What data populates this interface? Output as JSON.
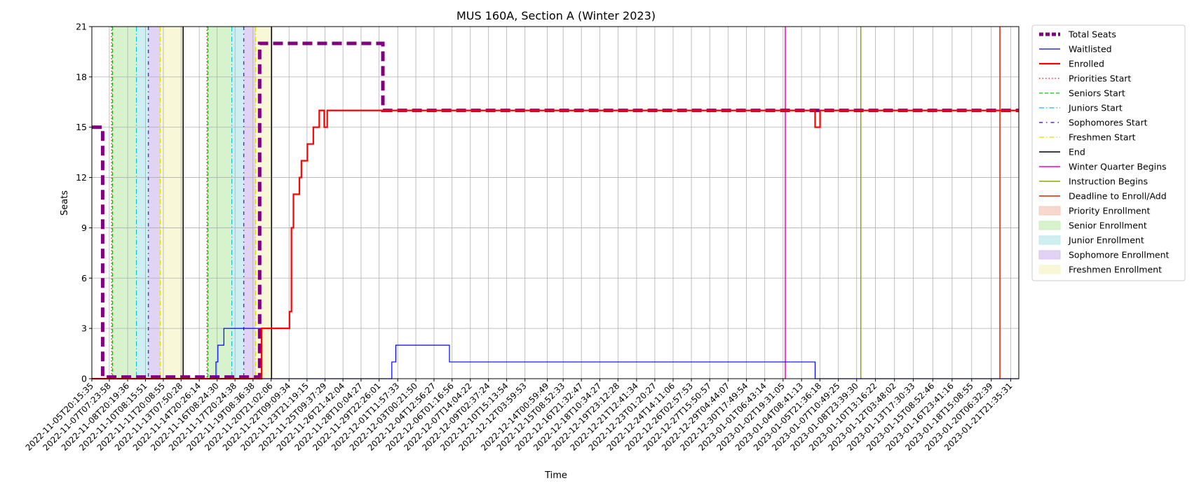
{
  "chart_data": {
    "type": "line",
    "title": "MUS 160A, Section A (Winter 2023)",
    "xlabel": "Time",
    "ylabel": "Seats",
    "ylim": [
      0,
      21
    ],
    "yticks": [
      0,
      3,
      6,
      9,
      12,
      15,
      18,
      21
    ],
    "xlim": [
      "2022-11-05T20:15:35",
      "2023-01-22T14:00:00"
    ],
    "grid": true,
    "legend_position": "outside-right",
    "xtick_labels": [
      "2022-11-05T20:15:35",
      "2022-11-07T07:23:58",
      "2022-11-08T20:19:36",
      "2022-11-10T08:15:51",
      "2022-11-11T20:08:55",
      "2022-11-13T07:50:28",
      "2022-11-14T20:26:14",
      "2022-11-16T08:24:30",
      "2022-11-17T20:24:38",
      "2022-11-19T08:36:38",
      "2022-11-20T21:02:06",
      "2022-11-22T09:09:34",
      "2022-11-23T21:19:15",
      "2022-11-25T09:37:29",
      "2022-11-26T21:42:04",
      "2022-11-28T10:04:27",
      "2022-11-29T22:26:01",
      "2022-12-01T11:57:33",
      "2022-12-03T00:21:50",
      "2022-12-04T12:56:27",
      "2022-12-06T01:16:56",
      "2022-12-07T14:04:22",
      "2022-12-09T02:37:24",
      "2022-12-10T15:13:54",
      "2022-12-12T03:59:53",
      "2022-12-14T00:59:49",
      "2022-12-15T08:52:33",
      "2022-12-16T21:32:47",
      "2022-12-18T10:34:27",
      "2022-12-19T23:12:28",
      "2022-12-21T12:41:34",
      "2022-12-23T01:20:27",
      "2022-12-24T14:11:06",
      "2022-12-26T02:57:53",
      "2022-12-27T15:50:57",
      "2022-12-29T04:44:07",
      "2022-12-30T17:49:54",
      "2023-01-01T06:43:14",
      "2023-01-02T19:31:05",
      "2023-01-04T08:41:13",
      "2023-01-05T21:36:18",
      "2023-01-07T10:49:25",
      "2023-01-08T23:39:30",
      "2023-01-10T13:16:22",
      "2023-01-12T03:48:02",
      "2023-01-13T17:30:33",
      "2023-01-15T08:52:46",
      "2023-01-16T23:41:16",
      "2023-01-18T15:08:55",
      "2023-01-20T06:32:39",
      "2023-01-21T21:35:31"
    ],
    "shaded_regions": [
      {
        "name": "Priority Enrollment",
        "color": "#f4cbbd",
        "spans": [
          [
            "2022-11-07T12:00:00",
            "2022-11-07T14:00:00"
          ],
          [
            "2022-11-15T12:00:00",
            "2022-11-15T14:00:00"
          ]
        ]
      },
      {
        "name": "Senior Enrollment",
        "color": "#c8efbc",
        "spans": [
          [
            "2022-11-07T14:00:00",
            "2022-11-09T14:00:00"
          ],
          [
            "2022-11-15T14:00:00",
            "2022-11-17T14:00:00"
          ]
        ]
      },
      {
        "name": "Junior Enrollment",
        "color": "#bde8ee",
        "spans": [
          [
            "2022-11-09T14:00:00",
            "2022-11-10T14:00:00"
          ],
          [
            "2022-11-17T14:00:00",
            "2022-11-18T14:00:00"
          ]
        ]
      },
      {
        "name": "Sophomore Enrollment",
        "color": "#d7c4f0",
        "spans": [
          [
            "2022-11-10T14:00:00",
            "2022-11-11T14:00:00"
          ],
          [
            "2022-11-18T14:00:00",
            "2022-11-19T14:00:00"
          ]
        ]
      },
      {
        "name": "Freshmen Enrollment",
        "color": "#f6f6cc",
        "spans": [
          [
            "2022-11-11T14:00:00",
            "2022-11-13T12:00:00"
          ],
          [
            "2022-11-19T14:00:00",
            "2022-11-20T22:00:00"
          ]
        ]
      }
    ],
    "vlines": [
      {
        "name": "Priorities Start",
        "color": "#ff0000",
        "dash": "1.5,3",
        "width": 1.2,
        "x": [
          "2022-11-07T12:00:00",
          "2022-11-15T12:00:00"
        ]
      },
      {
        "name": "Seniors Start",
        "color": "#22bb22",
        "dash": "5,3",
        "width": 1.2,
        "x": [
          "2022-11-07T14:00:00",
          "2022-11-15T14:00:00"
        ]
      },
      {
        "name": "Juniors Start",
        "color": "#17becf",
        "dash": "7,3,1.5,3",
        "width": 1.2,
        "x": [
          "2022-11-09T14:00:00",
          "2022-11-17T14:00:00"
        ]
      },
      {
        "name": "Sophomores Start",
        "color": "#5522dd",
        "dash": "5,5,1.5,5",
        "width": 1.4,
        "x": [
          "2022-11-10T14:00:00",
          "2022-11-18T14:00:00"
        ]
      },
      {
        "name": "Freshmen Start",
        "color": "#dddd00",
        "dash": "7,3,1.5,3",
        "width": 1.2,
        "x": [
          "2022-11-11T14:00:00",
          "2022-11-19T14:00:00"
        ]
      },
      {
        "name": "End",
        "color": "#000000",
        "dash": "",
        "width": 1.5,
        "x": [
          "2022-11-13T12:00:00",
          "2022-11-20T22:00:00"
        ]
      },
      {
        "name": "Winter Quarter Begins",
        "color": "#ff00aa",
        "dash": "",
        "width": 1.5,
        "x": [
          "2023-01-03T00:00:00"
        ]
      },
      {
        "name": "Instruction Begins",
        "color": "#88aa00",
        "dash": "",
        "width": 1.5,
        "x": [
          "2023-01-09T08:00:00"
        ]
      },
      {
        "name": "Deadline to Enroll/Add",
        "color": "#dd2200",
        "dash": "",
        "width": 1.5,
        "x": [
          "2023-01-20T23:59:00"
        ]
      }
    ],
    "series": [
      {
        "name": "Total Seats",
        "color": "#800080",
        "width": 5,
        "dash": "14,7",
        "points": [
          [
            "2022-11-05T20:15:35",
            15
          ],
          [
            "2022-11-06T18:00:00",
            15
          ],
          [
            "2022-11-06T18:00:00",
            0.1
          ],
          [
            "2022-11-19T22:00:00",
            0.1
          ],
          [
            "2022-11-19T22:00:00",
            20
          ],
          [
            "2022-11-30T06:00:00",
            20
          ],
          [
            "2022-11-30T06:00:00",
            16
          ],
          [
            "2023-01-22T14:00:00",
            16
          ]
        ]
      },
      {
        "name": "Waitlisted",
        "color": "#0000ff",
        "width": 1.2,
        "dash": "",
        "points": [
          [
            "2022-11-05T20:15:35",
            0
          ],
          [
            "2022-11-16T06:00:00",
            0
          ],
          [
            "2022-11-16T06:00:00",
            1
          ],
          [
            "2022-11-16T10:00:00",
            1
          ],
          [
            "2022-11-16T10:00:00",
            2
          ],
          [
            "2022-11-16T22:00:00",
            2
          ],
          [
            "2022-11-16T22:00:00",
            3
          ],
          [
            "2022-11-20T02:00:00",
            3
          ],
          [
            "2022-11-20T02:00:00",
            0
          ],
          [
            "2022-12-01T00:00:00",
            0
          ],
          [
            "2022-12-01T00:00:00",
            1
          ],
          [
            "2022-12-01T08:00:00",
            1
          ],
          [
            "2022-12-01T08:00:00",
            2
          ],
          [
            "2022-12-05T20:00:00",
            2
          ],
          [
            "2022-12-05T20:00:00",
            1
          ],
          [
            "2023-01-05T12:00:00",
            1
          ],
          [
            "2023-01-05T12:00:00",
            0
          ],
          [
            "2023-01-22T14:00:00",
            0
          ]
        ]
      },
      {
        "name": "Enrolled",
        "color": "#ff0000",
        "width": 2.2,
        "dash": "",
        "points": [
          [
            "2022-11-05T20:15:35",
            0
          ],
          [
            "2022-11-20T02:00:00",
            0
          ],
          [
            "2022-11-20T02:00:00",
            3
          ],
          [
            "2022-11-22T10:00:00",
            3
          ],
          [
            "2022-11-22T10:00:00",
            4
          ],
          [
            "2022-11-22T14:00:00",
            4
          ],
          [
            "2022-11-22T14:00:00",
            9
          ],
          [
            "2022-11-22T18:00:00",
            9
          ],
          [
            "2022-11-22T18:00:00",
            11
          ],
          [
            "2022-11-23T06:00:00",
            11
          ],
          [
            "2022-11-23T06:00:00",
            12
          ],
          [
            "2022-11-23T10:00:00",
            12
          ],
          [
            "2022-11-23T10:00:00",
            13
          ],
          [
            "2022-11-23T22:00:00",
            13
          ],
          [
            "2022-11-23T22:00:00",
            14
          ],
          [
            "2022-11-24T10:00:00",
            14
          ],
          [
            "2022-11-24T10:00:00",
            15
          ],
          [
            "2022-11-24T22:00:00",
            15
          ],
          [
            "2022-11-24T22:00:00",
            16
          ],
          [
            "2022-11-25T08:00:00",
            16
          ],
          [
            "2022-11-25T08:00:00",
            15
          ],
          [
            "2022-11-25T14:00:00",
            15
          ],
          [
            "2022-11-25T14:00:00",
            16
          ],
          [
            "2023-01-05T12:00:00",
            16
          ],
          [
            "2023-01-05T12:00:00",
            15
          ],
          [
            "2023-01-05T22:00:00",
            15
          ],
          [
            "2023-01-05T22:00:00",
            16
          ],
          [
            "2023-01-22T14:00:00",
            16
          ]
        ]
      }
    ],
    "legend": [
      {
        "label": "Total Seats",
        "kind": "line",
        "color": "#800080",
        "width": 5,
        "dash": "6,3"
      },
      {
        "label": "Waitlisted",
        "kind": "line",
        "color": "#0000ff",
        "width": 1.2,
        "dash": ""
      },
      {
        "label": "Enrolled",
        "kind": "line",
        "color": "#ff0000",
        "width": 2.2,
        "dash": ""
      },
      {
        "label": "Priorities Start",
        "kind": "line",
        "color": "#ff0000",
        "width": 1.2,
        "dash": "1.5,3"
      },
      {
        "label": "Seniors Start",
        "kind": "line",
        "color": "#22bb22",
        "width": 1.2,
        "dash": "5,3"
      },
      {
        "label": "Juniors Start",
        "kind": "line",
        "color": "#17becf",
        "width": 1.2,
        "dash": "7,3,1.5,3"
      },
      {
        "label": "Sophomores Start",
        "kind": "line",
        "color": "#5522dd",
        "width": 1.4,
        "dash": "5,5,1.5,5"
      },
      {
        "label": "Freshmen Start",
        "kind": "line",
        "color": "#dddd00",
        "width": 1.2,
        "dash": "7,3,1.5,3"
      },
      {
        "label": "End",
        "kind": "line",
        "color": "#000000",
        "width": 1.5,
        "dash": ""
      },
      {
        "label": "Winter Quarter Begins",
        "kind": "line",
        "color": "#ff00aa",
        "width": 1.5,
        "dash": ""
      },
      {
        "label": "Instruction Begins",
        "kind": "line",
        "color": "#88aa00",
        "width": 1.5,
        "dash": ""
      },
      {
        "label": "Deadline to Enroll/Add",
        "kind": "line",
        "color": "#dd2200",
        "width": 1.5,
        "dash": ""
      },
      {
        "label": "Priority Enrollment",
        "kind": "patch",
        "color": "#f4cbbd"
      },
      {
        "label": "Senior Enrollment",
        "kind": "patch",
        "color": "#c8efbc"
      },
      {
        "label": "Junior Enrollment",
        "kind": "patch",
        "color": "#bde8ee"
      },
      {
        "label": "Sophomore Enrollment",
        "kind": "patch",
        "color": "#d7c4f0"
      },
      {
        "label": "Freshmen Enrollment",
        "kind": "patch",
        "color": "#f6f6cc"
      }
    ]
  }
}
